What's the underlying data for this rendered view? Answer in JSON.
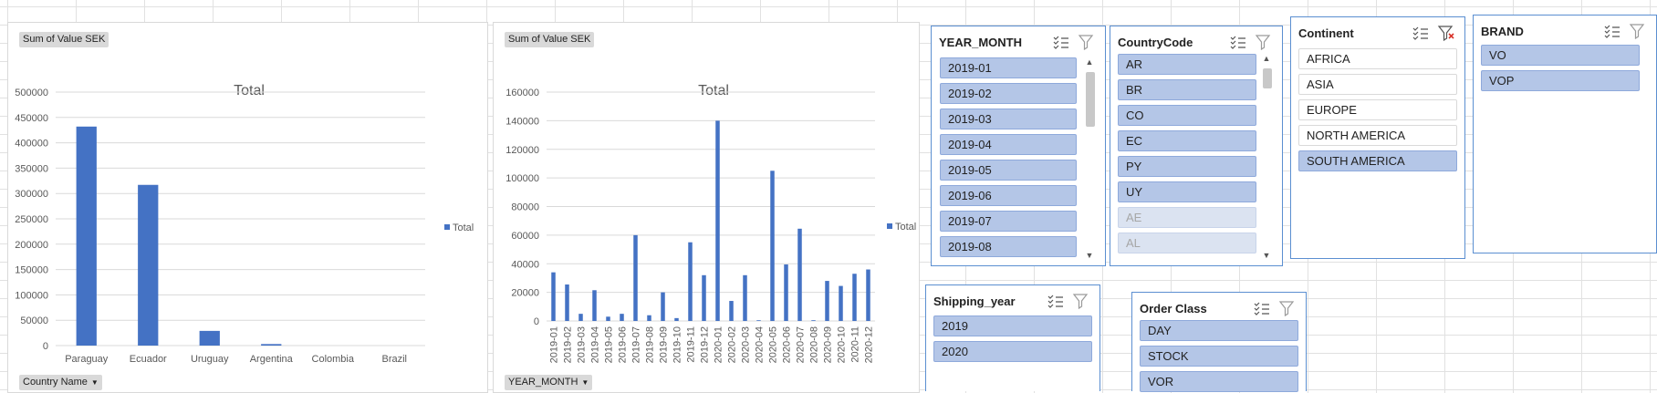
{
  "charts": [
    {
      "value_field_button": "Sum of Value SEK",
      "axis_field_button": "Country Name",
      "legend_label": "Total"
    },
    {
      "value_field_button": "Sum of Value SEK",
      "axis_field_button": "YEAR_MONTH",
      "legend_label": "Total"
    }
  ],
  "chart_data": [
    {
      "type": "bar",
      "title": "Total",
      "categories": [
        "Paraguay",
        "Ecuador",
        "Uruguay",
        "Argentina",
        "Colombia",
        "Brazil"
      ],
      "series": [
        {
          "name": "Total",
          "values": [
            432000,
            317000,
            29000,
            3000,
            0,
            0
          ]
        }
      ],
      "ylim": [
        0,
        500000
      ],
      "yticks": [
        0,
        50000,
        100000,
        150000,
        200000,
        250000,
        300000,
        350000,
        400000,
        450000,
        500000
      ],
      "grid": true,
      "legend": "right",
      "color": "#4472c4"
    },
    {
      "type": "bar",
      "title": "Total",
      "categories": [
        "2019-01",
        "2019-02",
        "2019-03",
        "2019-04",
        "2019-05",
        "2019-06",
        "2019-07",
        "2019-08",
        "2019-09",
        "2019-10",
        "2019-11",
        "2019-12",
        "2020-01",
        "2020-02",
        "2020-03",
        "2020-04",
        "2020-05",
        "2020-06",
        "2020-07",
        "2020-08",
        "2020-09",
        "2020-10",
        "2020-11",
        "2020-12"
      ],
      "series": [
        {
          "name": "Total",
          "values": [
            34000,
            25500,
            5000,
            21500,
            3000,
            5000,
            60000,
            4000,
            20000,
            2000,
            55000,
            32000,
            140000,
            14000,
            32000,
            500,
            105000,
            39500,
            64500,
            500,
            28000,
            24500,
            33000,
            36000
          ]
        }
      ],
      "ylim": [
        0,
        160000
      ],
      "yticks": [
        0,
        20000,
        40000,
        60000,
        80000,
        100000,
        120000,
        140000,
        160000
      ],
      "grid": true,
      "legend": "right",
      "color": "#4472c4"
    }
  ],
  "slicers": {
    "year_month": {
      "title": "YEAR_MONTH",
      "items": [
        {
          "label": "2019-01",
          "state": "sel"
        },
        {
          "label": "2019-02",
          "state": "sel"
        },
        {
          "label": "2019-03",
          "state": "sel"
        },
        {
          "label": "2019-04",
          "state": "sel"
        },
        {
          "label": "2019-05",
          "state": "sel"
        },
        {
          "label": "2019-06",
          "state": "sel"
        },
        {
          "label": "2019-07",
          "state": "sel"
        },
        {
          "label": "2019-08",
          "state": "sel"
        }
      ]
    },
    "country_code": {
      "title": "CountryCode",
      "items": [
        {
          "label": "AR",
          "state": "sel"
        },
        {
          "label": "BR",
          "state": "sel"
        },
        {
          "label": "CO",
          "state": "sel"
        },
        {
          "label": "EC",
          "state": "sel"
        },
        {
          "label": "PY",
          "state": "sel"
        },
        {
          "label": "UY",
          "state": "sel"
        },
        {
          "label": "AE",
          "state": "nodata"
        },
        {
          "label": "AL",
          "state": "nodata"
        }
      ]
    },
    "continent": {
      "title": "Continent",
      "filter_active": true,
      "items": [
        {
          "label": "AFRICA",
          "state": "unsel"
        },
        {
          "label": "ASIA",
          "state": "unsel"
        },
        {
          "label": "EUROPE",
          "state": "unsel"
        },
        {
          "label": "NORTH AMERICA",
          "state": "unsel"
        },
        {
          "label": "SOUTH AMERICA",
          "state": "sel"
        }
      ]
    },
    "brand": {
      "title": "BRAND",
      "items": [
        {
          "label": "VO",
          "state": "sel"
        },
        {
          "label": "VOP",
          "state": "sel"
        }
      ]
    },
    "shipping_year": {
      "title": "Shipping_year",
      "items": [
        {
          "label": "2019",
          "state": "sel"
        },
        {
          "label": "2020",
          "state": "sel"
        }
      ]
    },
    "order_class": {
      "title": "Order Class",
      "items": [
        {
          "label": "DAY",
          "state": "sel"
        },
        {
          "label": "STOCK",
          "state": "sel"
        },
        {
          "label": "VOR",
          "state": "sel"
        }
      ]
    }
  },
  "icons": {
    "multi_select": "multi-select-icon",
    "clear_filter": "clear-filter-icon"
  }
}
